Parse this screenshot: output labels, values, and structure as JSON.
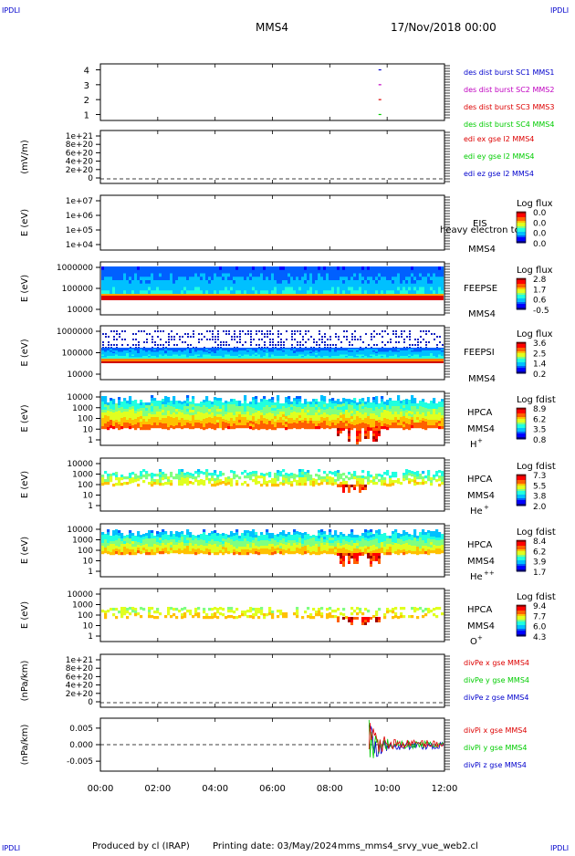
{
  "header": {
    "corner_tl": "IPDLI",
    "corner_tr": "IPDLI",
    "corner_bl": "IPDLI",
    "corner_br": "IPDLI",
    "spacecraft": "MMS4",
    "date": "17/Nov/2018 00:00"
  },
  "footer": {
    "produced_by": "Produced by cl (IRAP)",
    "printing_date": "Printing date: 03/May/2024",
    "script": "mms_mms4_srvy_vue_web2.cl"
  },
  "colors": {
    "magenta": "#c000c0",
    "red": "#dd0000",
    "green": "#00cc00",
    "blue": "#0000cc",
    "ionband": "#e04000"
  },
  "x_axis": {
    "ticks": [
      "00:00",
      "02:00",
      "04:00",
      "06:00",
      "08:00",
      "10:00",
      "12:00"
    ]
  },
  "chart_data": [
    {
      "id": "burst",
      "type": "line",
      "ylabel": "",
      "ylim": [
        0.6,
        4.4
      ],
      "yticks": [
        "4",
        "3",
        "2",
        "1"
      ],
      "series": [
        {
          "name": "des dist burst SC1 MMS1",
          "color": "blue",
          "x": [
            "09:42"
          ],
          "y": [
            4
          ]
        },
        {
          "name": "des dist burst SC2 MMS2",
          "color": "magenta",
          "x": [
            "09:42"
          ],
          "y": [
            3
          ]
        },
        {
          "name": "des dist burst SC3 MMS3",
          "color": "red",
          "x": [
            "09:42"
          ],
          "y": [
            2
          ]
        },
        {
          "name": "des dist burst SC4 MMS4",
          "color": "green",
          "x": [
            "09:42"
          ],
          "y": [
            1
          ]
        }
      ]
    },
    {
      "id": "edi",
      "type": "line",
      "ylabel": "(mV/m)",
      "yticks": [
        "1e+21",
        "8e+20",
        "6e+20",
        "4e+20",
        "2e+20",
        "0"
      ],
      "series": [
        {
          "name": "edi ex gse l2 MMS4",
          "color": "red"
        },
        {
          "name": "edi ey gse l2 MMS4",
          "color": "green"
        },
        {
          "name": "edi ez gse l2 MMS4",
          "color": "blue"
        }
      ]
    },
    {
      "id": "eis",
      "type": "heatmap",
      "ylabel": "E (eV)",
      "yticks": [
        "1e+07",
        "1e+06",
        "1e+05",
        "1e+04"
      ],
      "instrument": "EIS",
      "overlay_text": "heavy electron to",
      "spacecraft": "MMS4",
      "colorbar_title": "Log flux",
      "colorbar_ticks": [
        "0.0",
        "0.0",
        "0.0",
        "0.0"
      ]
    },
    {
      "id": "feepse",
      "type": "heatmap",
      "ylabel": "E (eV)",
      "yticks": [
        "1000000",
        "100000",
        "10000"
      ],
      "instrument": "FEEPSE",
      "spacecraft": "MMS4",
      "colorbar_title": "Log flux",
      "colorbar_ticks": [
        "2.8",
        "1.7",
        "0.6",
        "-0.5"
      ]
    },
    {
      "id": "feepsi",
      "type": "heatmap",
      "ylabel": "E (eV)",
      "yticks": [
        "1000000",
        "100000",
        "10000"
      ],
      "instrument": "FEEPSI",
      "spacecraft": "MMS4",
      "colorbar_title": "Log flux",
      "colorbar_ticks": [
        "3.6",
        "2.5",
        "1.4",
        "0.2"
      ]
    },
    {
      "id": "hpca_h",
      "type": "heatmap",
      "ylabel": "E (eV)",
      "yticks": [
        "10000",
        "1000",
        "100",
        "10",
        "1"
      ],
      "instrument": "HPCA",
      "spacecraft": "MMS4",
      "species": "H",
      "charge": "+",
      "colorbar_title": "Log fdist",
      "colorbar_ticks": [
        "8.9",
        "6.2",
        "3.5",
        "0.8"
      ]
    },
    {
      "id": "hpca_he1",
      "type": "heatmap",
      "ylabel": "E (eV)",
      "yticks": [
        "10000",
        "1000",
        "100",
        "10",
        "1"
      ],
      "instrument": "HPCA",
      "spacecraft": "MMS4",
      "species": "He",
      "charge": "+",
      "colorbar_title": "Log fdist",
      "colorbar_ticks": [
        "7.3",
        "5.5",
        "3.8",
        "2.0"
      ]
    },
    {
      "id": "hpca_he2",
      "type": "heatmap",
      "ylabel": "E (eV)",
      "yticks": [
        "10000",
        "1000",
        "100",
        "10",
        "1"
      ],
      "instrument": "HPCA",
      "spacecraft": "MMS4",
      "species": "He",
      "charge": "++",
      "colorbar_title": "Log fdist",
      "colorbar_ticks": [
        "8.4",
        "6.2",
        "3.9",
        "1.7"
      ]
    },
    {
      "id": "hpca_o",
      "type": "heatmap",
      "ylabel": "E (eV)",
      "yticks": [
        "10000",
        "1000",
        "100",
        "10",
        "1"
      ],
      "instrument": "HPCA",
      "spacecraft": "MMS4",
      "species": "O",
      "charge": "+",
      "colorbar_title": "Log fdist",
      "colorbar_ticks": [
        "9.4",
        "7.7",
        "6.0",
        "4.3"
      ]
    },
    {
      "id": "divpe",
      "type": "line",
      "ylabel": "(nPa/km)",
      "yticks": [
        "1e+21",
        "8e+20",
        "6e+20",
        "4e+20",
        "2e+20",
        "0"
      ],
      "series": [
        {
          "name": "divPe x gse MMS4",
          "color": "red"
        },
        {
          "name": "divPe y gse MMS4",
          "color": "green"
        },
        {
          "name": "divPe z gse MMS4",
          "color": "blue"
        }
      ]
    },
    {
      "id": "divpi",
      "type": "line",
      "ylabel": "(nPa/km)",
      "ylim": [
        -0.008,
        0.008
      ],
      "yticks": [
        "0.005",
        "0.000",
        "-0.005"
      ],
      "series": [
        {
          "name": "divPi x gse MMS4",
          "color": "red"
        },
        {
          "name": "divPi y gse MMS4",
          "color": "green"
        },
        {
          "name": "divPi z gse MMS4",
          "color": "blue"
        }
      ]
    }
  ]
}
